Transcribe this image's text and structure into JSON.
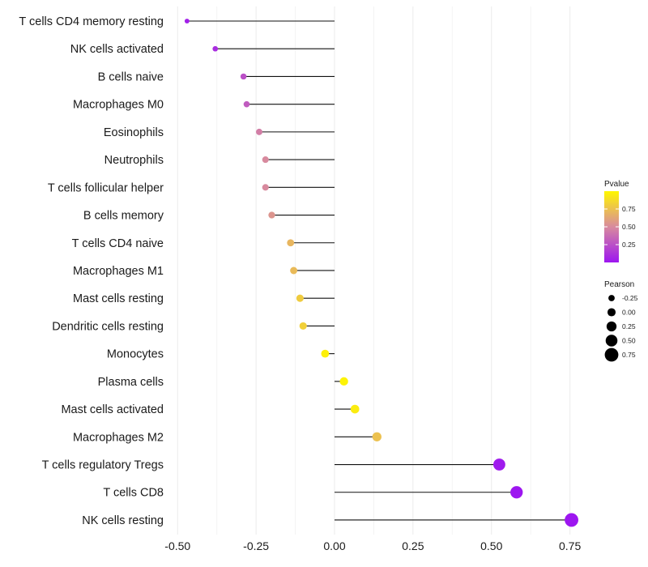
{
  "chart_data": {
    "type": "lollipop",
    "title": "",
    "xlabel": "",
    "ylabel": "",
    "xlim": [
      -0.52,
      0.8
    ],
    "xticks": [
      -0.5,
      -0.25,
      0.0,
      0.25,
      0.5,
      0.75
    ],
    "xtick_labels": [
      "-0.50",
      "-0.25",
      "0.00",
      "0.25",
      "0.50",
      "0.75"
    ],
    "categories": [
      "T cells CD4 memory resting",
      "NK cells activated",
      "B cells naive",
      "Macrophages M0",
      "Eosinophils",
      "Neutrophils",
      "T cells follicular helper",
      "B cells memory",
      "T cells CD4 naive",
      "Macrophages M1",
      "Mast cells resting",
      "Dendritic cells resting",
      "Monocytes",
      "Plasma cells",
      "Mast cells activated",
      "Macrophages M2",
      "T cells regulatory  Tregs ",
      "T cells CD8",
      "NK cells resting"
    ],
    "pearson": [
      -0.47,
      -0.38,
      -0.29,
      -0.28,
      -0.24,
      -0.22,
      -0.22,
      -0.2,
      -0.14,
      -0.13,
      -0.11,
      -0.1,
      -0.03,
      0.03,
      0.065,
      0.135,
      0.525,
      0.58,
      0.755
    ],
    "pvalue": [
      0.04,
      0.1,
      0.25,
      0.3,
      0.45,
      0.5,
      0.5,
      0.55,
      0.7,
      0.72,
      0.8,
      0.82,
      0.97,
      0.98,
      0.95,
      0.75,
      0.02,
      0.0,
      0.0
    ],
    "color_scale": {
      "low": "#9d16f0",
      "mid": "#d88a9e",
      "high": "#fff700"
    },
    "legend": {
      "color_title": "Pvalue",
      "color_ticks": [
        0.25,
        0.5,
        0.75
      ],
      "color_tick_labels": [
        "0.25",
        "0.50",
        "0.75"
      ],
      "size_title": "Pearson",
      "size_values": [
        -0.25,
        0.0,
        0.25,
        0.5,
        0.75
      ],
      "size_labels": [
        "-0.25",
        "0.00",
        "0.25",
        "0.50",
        "0.75"
      ],
      "placement": "right"
    },
    "grid": true
  }
}
